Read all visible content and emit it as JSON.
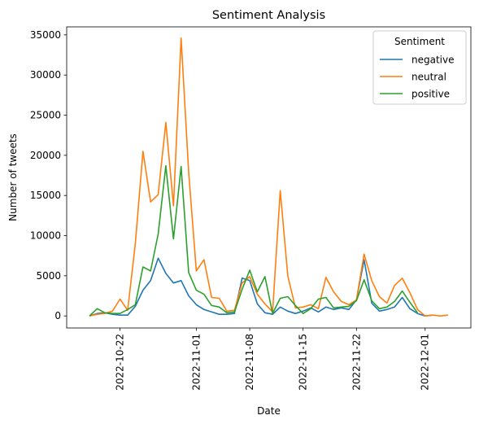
{
  "chart_data": {
    "type": "line",
    "title": "Sentiment Analysis",
    "xlabel": "Date",
    "ylabel": "Number of tweets",
    "xlim": [
      "2022-10-15",
      "2022-12-07"
    ],
    "ylim": [
      -1500,
      36000
    ],
    "x_ticks": [
      "2022-10-22",
      "2022-11-01",
      "2022-11-08",
      "2022-11-15",
      "2022-11-22",
      "2022-12-01"
    ],
    "y_ticks": [
      0,
      5000,
      10000,
      15000,
      20000,
      25000,
      30000,
      35000
    ],
    "grid": false,
    "legend": {
      "title": "Sentiment",
      "placement": "upper right"
    },
    "x": [
      "2022-10-18",
      "2022-10-19",
      "2022-10-20",
      "2022-10-21",
      "2022-10-22",
      "2022-10-23",
      "2022-10-24",
      "2022-10-25",
      "2022-10-26",
      "2022-10-27",
      "2022-10-28",
      "2022-10-29",
      "2022-10-30",
      "2022-10-31",
      "2022-11-01",
      "2022-11-02",
      "2022-11-03",
      "2022-11-04",
      "2022-11-05",
      "2022-11-06",
      "2022-11-07",
      "2022-11-08",
      "2022-11-09",
      "2022-11-10",
      "2022-11-11",
      "2022-11-12",
      "2022-11-13",
      "2022-11-14",
      "2022-11-15",
      "2022-11-16",
      "2022-11-17",
      "2022-11-18",
      "2022-11-19",
      "2022-11-20",
      "2022-11-21",
      "2022-11-22",
      "2022-11-23",
      "2022-11-24",
      "2022-11-25",
      "2022-11-26",
      "2022-11-27",
      "2022-11-28",
      "2022-11-29",
      "2022-11-30",
      "2022-12-01",
      "2022-12-02",
      "2022-12-03",
      "2022-12-04"
    ],
    "series": [
      {
        "name": "negative",
        "color": "#1f77b4",
        "values": [
          0,
          300,
          400,
          200,
          100,
          100,
          1200,
          3200,
          4400,
          7200,
          5300,
          4100,
          4400,
          2500,
          1400,
          800,
          500,
          200,
          200,
          300,
          4700,
          4400,
          1500,
          400,
          200,
          1100,
          600,
          300,
          600,
          1000,
          500,
          1100,
          800,
          1000,
          800,
          2000,
          7000,
          1600,
          600,
          800,
          1100,
          2300,
          900,
          300,
          0,
          100,
          null,
          null
        ]
      },
      {
        "name": "neutral",
        "color": "#ff7f0e",
        "values": [
          0,
          200,
          300,
          600,
          2100,
          700,
          9000,
          20500,
          14200,
          15100,
          24100,
          13700,
          34600,
          17900,
          5600,
          7000,
          2300,
          2200,
          600,
          700,
          4100,
          4900,
          2700,
          1500,
          500,
          15600,
          5000,
          1000,
          1100,
          1400,
          900,
          4800,
          3000,
          1800,
          1400,
          2000,
          7700,
          4400,
          2400,
          1600,
          3800,
          4700,
          2900,
          800,
          0,
          100,
          0,
          100
        ]
      },
      {
        "name": "positive",
        "color": "#2ca02c",
        "values": [
          0,
          900,
          400,
          300,
          300,
          800,
          1400,
          6100,
          5600,
          10200,
          18700,
          9600,
          18600,
          5400,
          3200,
          2700,
          1300,
          1100,
          400,
          500,
          3300,
          5700,
          3000,
          4900,
          300,
          2200,
          2400,
          1300,
          300,
          900,
          2100,
          2300,
          1000,
          1100,
          1200,
          1900,
          4500,
          1900,
          900,
          1100,
          1800,
          3100,
          1700,
          400,
          null,
          null,
          null,
          null
        ]
      }
    ]
  }
}
